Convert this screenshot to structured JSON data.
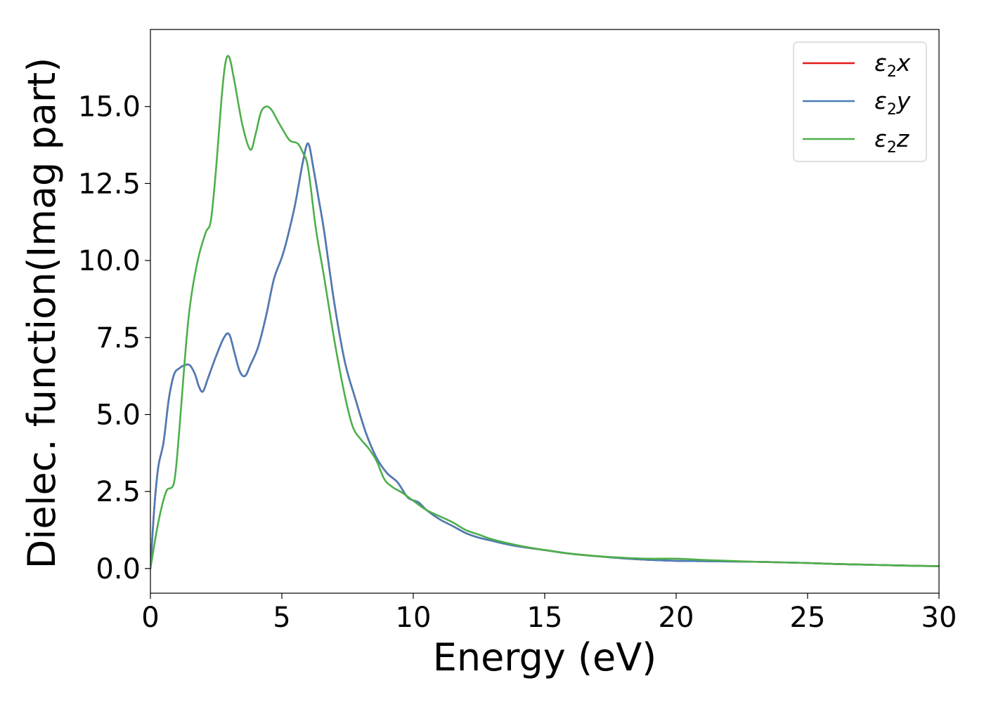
{
  "chart_data": {
    "type": "line",
    "title": "",
    "xlabel": "Energy (eV)",
    "ylabel": "Dielec. function(Imag part)",
    "xlim": [
      0,
      30
    ],
    "ylim": [
      -0.8,
      17.5
    ],
    "xticks": [
      0,
      5,
      10,
      15,
      20,
      25,
      30
    ],
    "xtick_labels": [
      "0",
      "5",
      "10",
      "15",
      "20",
      "25",
      "30"
    ],
    "yticks": [
      0.0,
      2.5,
      5.0,
      7.5,
      10.0,
      12.5,
      15.0
    ],
    "ytick_labels": [
      "0.0",
      "2.5",
      "5.0",
      "7.5",
      "10.0",
      "12.5",
      "15.0"
    ],
    "grid": false,
    "legend_position": "top-right",
    "series": [
      {
        "name": "ε2x",
        "legend_base": "ε",
        "legend_sub": "2",
        "legend_suffix": "x",
        "color": "#e41a1c",
        "x": [
          0,
          0.15,
          0.3,
          0.5,
          0.7,
          0.9,
          1.1,
          1.3,
          1.5,
          1.7,
          1.85,
          2.0,
          2.2,
          2.5,
          2.8,
          3.0,
          3.2,
          3.4,
          3.6,
          3.8,
          4.1,
          4.4,
          4.7,
          5.0,
          5.2,
          5.5,
          5.8,
          6.0,
          6.2,
          6.4,
          6.6,
          7.0,
          7.4,
          7.8,
          8.2,
          8.6,
          9.0,
          9.4,
          9.8,
          10.2,
          10.5,
          11.0,
          11.5,
          12.0,
          12.5,
          13.0,
          13.5,
          14.0,
          15.0,
          16.0,
          17.0,
          18.0,
          19.0,
          20.0,
          21.0,
          22.0,
          23.0,
          24.0,
          25.0,
          26.0,
          27.0,
          28.0,
          29.0,
          30.0
        ],
        "y": [
          0.0,
          2.0,
          3.3,
          4.1,
          5.5,
          6.3,
          6.5,
          6.6,
          6.6,
          6.3,
          5.9,
          5.75,
          6.2,
          6.9,
          7.5,
          7.6,
          7.0,
          6.4,
          6.25,
          6.6,
          7.2,
          8.2,
          9.4,
          10.1,
          10.7,
          11.8,
          13.2,
          13.8,
          13.0,
          12.0,
          11.0,
          8.6,
          6.7,
          5.5,
          4.4,
          3.6,
          3.1,
          2.8,
          2.3,
          2.15,
          1.9,
          1.6,
          1.38,
          1.15,
          1.0,
          0.9,
          0.8,
          0.72,
          0.6,
          0.48,
          0.4,
          0.33,
          0.28,
          0.25,
          0.24,
          0.23,
          0.22,
          0.2,
          0.18,
          0.15,
          0.13,
          0.11,
          0.09,
          0.08
        ]
      },
      {
        "name": "ε2y",
        "legend_base": "ε",
        "legend_sub": "2",
        "legend_suffix": "y",
        "color": "#4a7db8",
        "x": [
          0,
          0.15,
          0.3,
          0.5,
          0.7,
          0.9,
          1.1,
          1.3,
          1.5,
          1.7,
          1.85,
          2.0,
          2.2,
          2.5,
          2.8,
          3.0,
          3.2,
          3.4,
          3.6,
          3.8,
          4.1,
          4.4,
          4.7,
          5.0,
          5.2,
          5.5,
          5.8,
          6.0,
          6.2,
          6.4,
          6.6,
          7.0,
          7.4,
          7.8,
          8.2,
          8.6,
          9.0,
          9.4,
          9.8,
          10.2,
          10.5,
          11.0,
          11.5,
          12.0,
          12.5,
          13.0,
          13.5,
          14.0,
          15.0,
          16.0,
          17.0,
          18.0,
          19.0,
          20.0,
          21.0,
          22.0,
          23.0,
          24.0,
          25.0,
          26.0,
          27.0,
          28.0,
          29.0,
          30.0
        ],
        "y": [
          0.0,
          2.0,
          3.3,
          4.1,
          5.5,
          6.3,
          6.5,
          6.6,
          6.6,
          6.3,
          5.9,
          5.75,
          6.2,
          6.9,
          7.5,
          7.6,
          7.0,
          6.4,
          6.25,
          6.6,
          7.2,
          8.2,
          9.4,
          10.1,
          10.7,
          11.8,
          13.2,
          13.8,
          13.0,
          12.0,
          11.0,
          8.6,
          6.7,
          5.5,
          4.4,
          3.6,
          3.1,
          2.8,
          2.3,
          2.15,
          1.9,
          1.6,
          1.38,
          1.15,
          1.0,
          0.9,
          0.8,
          0.72,
          0.6,
          0.48,
          0.4,
          0.33,
          0.28,
          0.25,
          0.24,
          0.23,
          0.22,
          0.2,
          0.18,
          0.15,
          0.13,
          0.11,
          0.09,
          0.08
        ]
      },
      {
        "name": "ε2z",
        "legend_base": "ε",
        "legend_sub": "2",
        "legend_suffix": "z",
        "color": "#4daf4a",
        "x": [
          0,
          0.3,
          0.6,
          0.9,
          1.1,
          1.3,
          1.5,
          1.8,
          2.1,
          2.3,
          2.5,
          2.7,
          2.85,
          3.0,
          3.2,
          3.5,
          3.8,
          4.0,
          4.2,
          4.4,
          4.6,
          4.8,
          5.0,
          5.3,
          5.6,
          5.8,
          6.0,
          6.3,
          6.6,
          7.0,
          7.4,
          7.7,
          8.0,
          8.3,
          8.6,
          8.9,
          9.2,
          9.6,
          10.0,
          10.5,
          11.0,
          11.5,
          12.0,
          12.5,
          13.0,
          14.0,
          15.0,
          16.0,
          17.0,
          18.0,
          19.0,
          20.0,
          21.0,
          22.0,
          23.0,
          24.0,
          25.0,
          26.0,
          27.0,
          28.0,
          29.0,
          30.0
        ],
        "y": [
          0.0,
          1.5,
          2.5,
          2.8,
          4.5,
          6.7,
          8.5,
          10.0,
          10.9,
          11.3,
          13.0,
          15.2,
          16.4,
          16.6,
          15.8,
          14.4,
          13.6,
          14.1,
          14.8,
          15.0,
          14.9,
          14.6,
          14.3,
          13.9,
          13.8,
          13.5,
          13.0,
          11.0,
          9.5,
          7.4,
          5.6,
          4.6,
          4.2,
          3.9,
          3.5,
          2.9,
          2.65,
          2.45,
          2.2,
          1.9,
          1.7,
          1.5,
          1.25,
          1.1,
          0.95,
          0.75,
          0.6,
          0.48,
          0.4,
          0.35,
          0.32,
          0.32,
          0.28,
          0.25,
          0.22,
          0.2,
          0.18,
          0.15,
          0.13,
          0.11,
          0.09,
          0.08
        ]
      }
    ]
  }
}
